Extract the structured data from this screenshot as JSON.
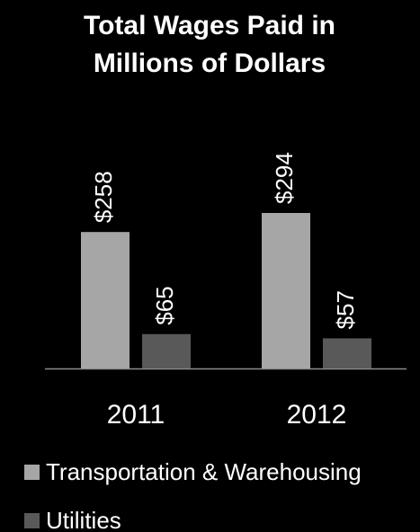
{
  "chart_data": {
    "type": "bar",
    "title": "Total Wages Paid in Millions of Dollars",
    "categories": [
      "2011",
      "2012"
    ],
    "series": [
      {
        "name": "Transportation & Warehousing",
        "color": "#a6a6a6",
        "values": [
          258,
          294
        ],
        "value_labels": [
          "$258",
          "$294"
        ]
      },
      {
        "name": "Utilities",
        "color": "#595959",
        "values": [
          65,
          57
        ],
        "value_labels": [
          "$65",
          "$57"
        ]
      }
    ],
    "legend": "bottom"
  }
}
